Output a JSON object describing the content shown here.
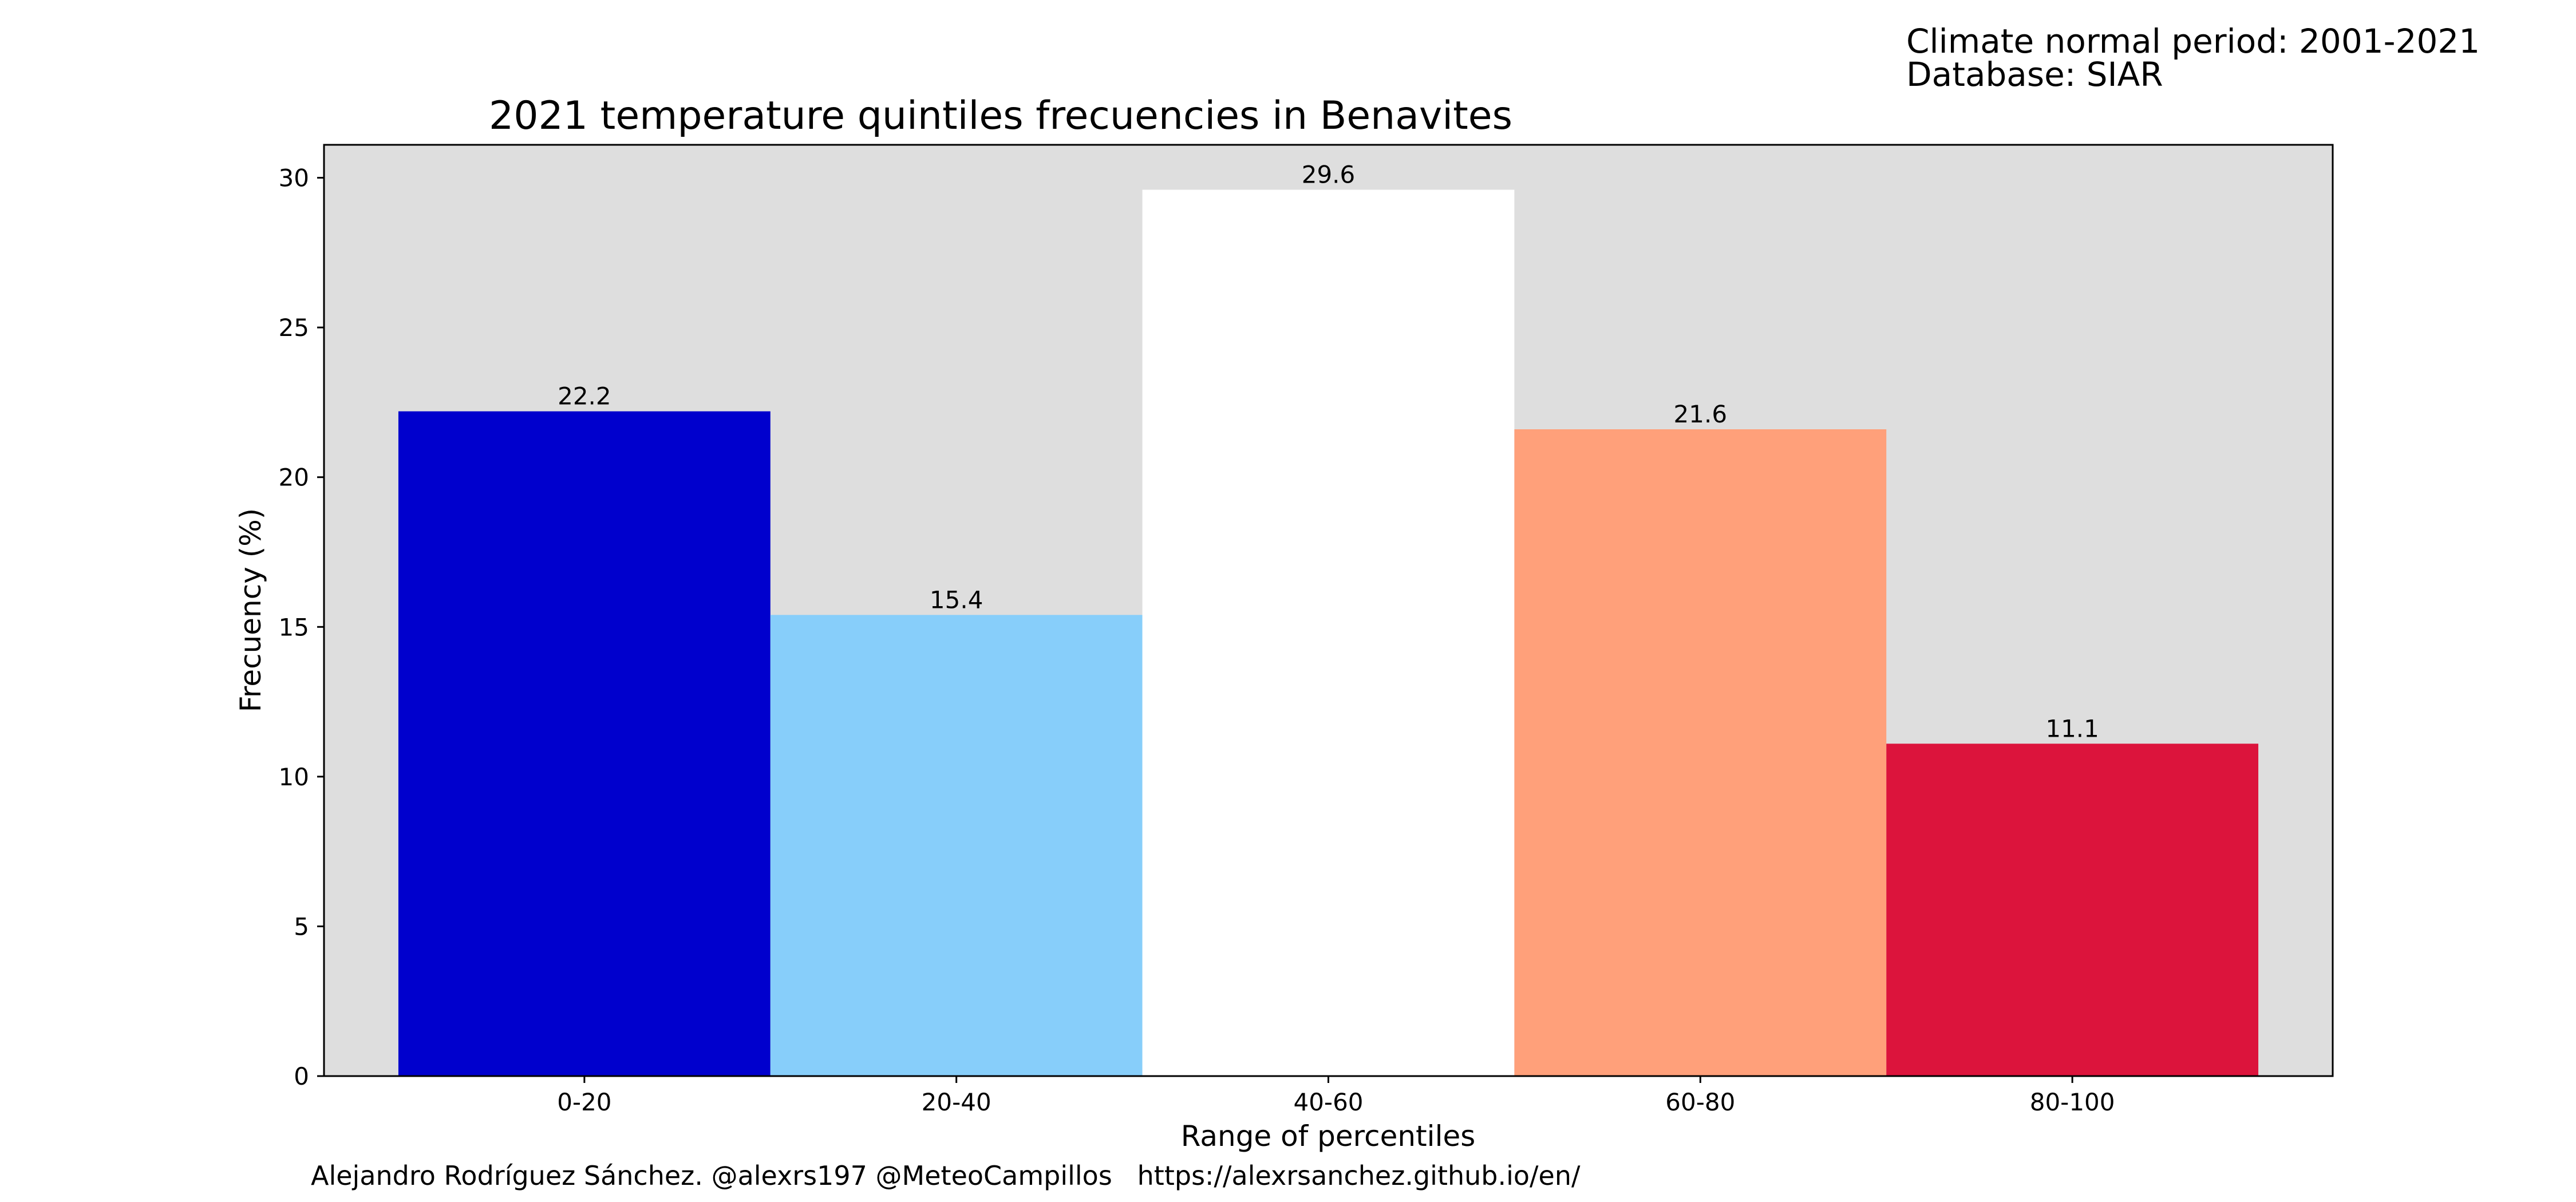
{
  "header": {
    "climate_period": "Climate normal period: 2001-2021",
    "database": "Database: SIAR"
  },
  "footer": {
    "credit": "Alejandro Rodríguez Sánchez. @alexrs197 @MeteoCampillos   https://alexrsanchez.github.io/en/"
  },
  "chart_data": {
    "type": "bar",
    "title": "2021 temperature quintiles frecuencies in Benavites",
    "xlabel": "Range of percentiles",
    "ylabel": "Frecuency (%)",
    "categories": [
      "0-20",
      "20-40",
      "40-60",
      "60-80",
      "80-100"
    ],
    "values": [
      22.2,
      15.4,
      29.6,
      21.6,
      11.1
    ],
    "value_labels": [
      "22.2",
      "15.4",
      "29.6",
      "21.6",
      "11.1"
    ],
    "bar_colors": [
      "#0000cd",
      "#87cefa",
      "#ffffff",
      "#ffa07a",
      "#dc143c"
    ],
    "background_color": "#dedede",
    "ylim": [
      0,
      31.1
    ],
    "yticks": [
      0,
      5,
      10,
      15,
      20,
      25,
      30
    ],
    "ytick_labels": [
      "0",
      "5",
      "10",
      "15",
      "20",
      "25",
      "30"
    ],
    "grid": false,
    "legend": "none"
  }
}
